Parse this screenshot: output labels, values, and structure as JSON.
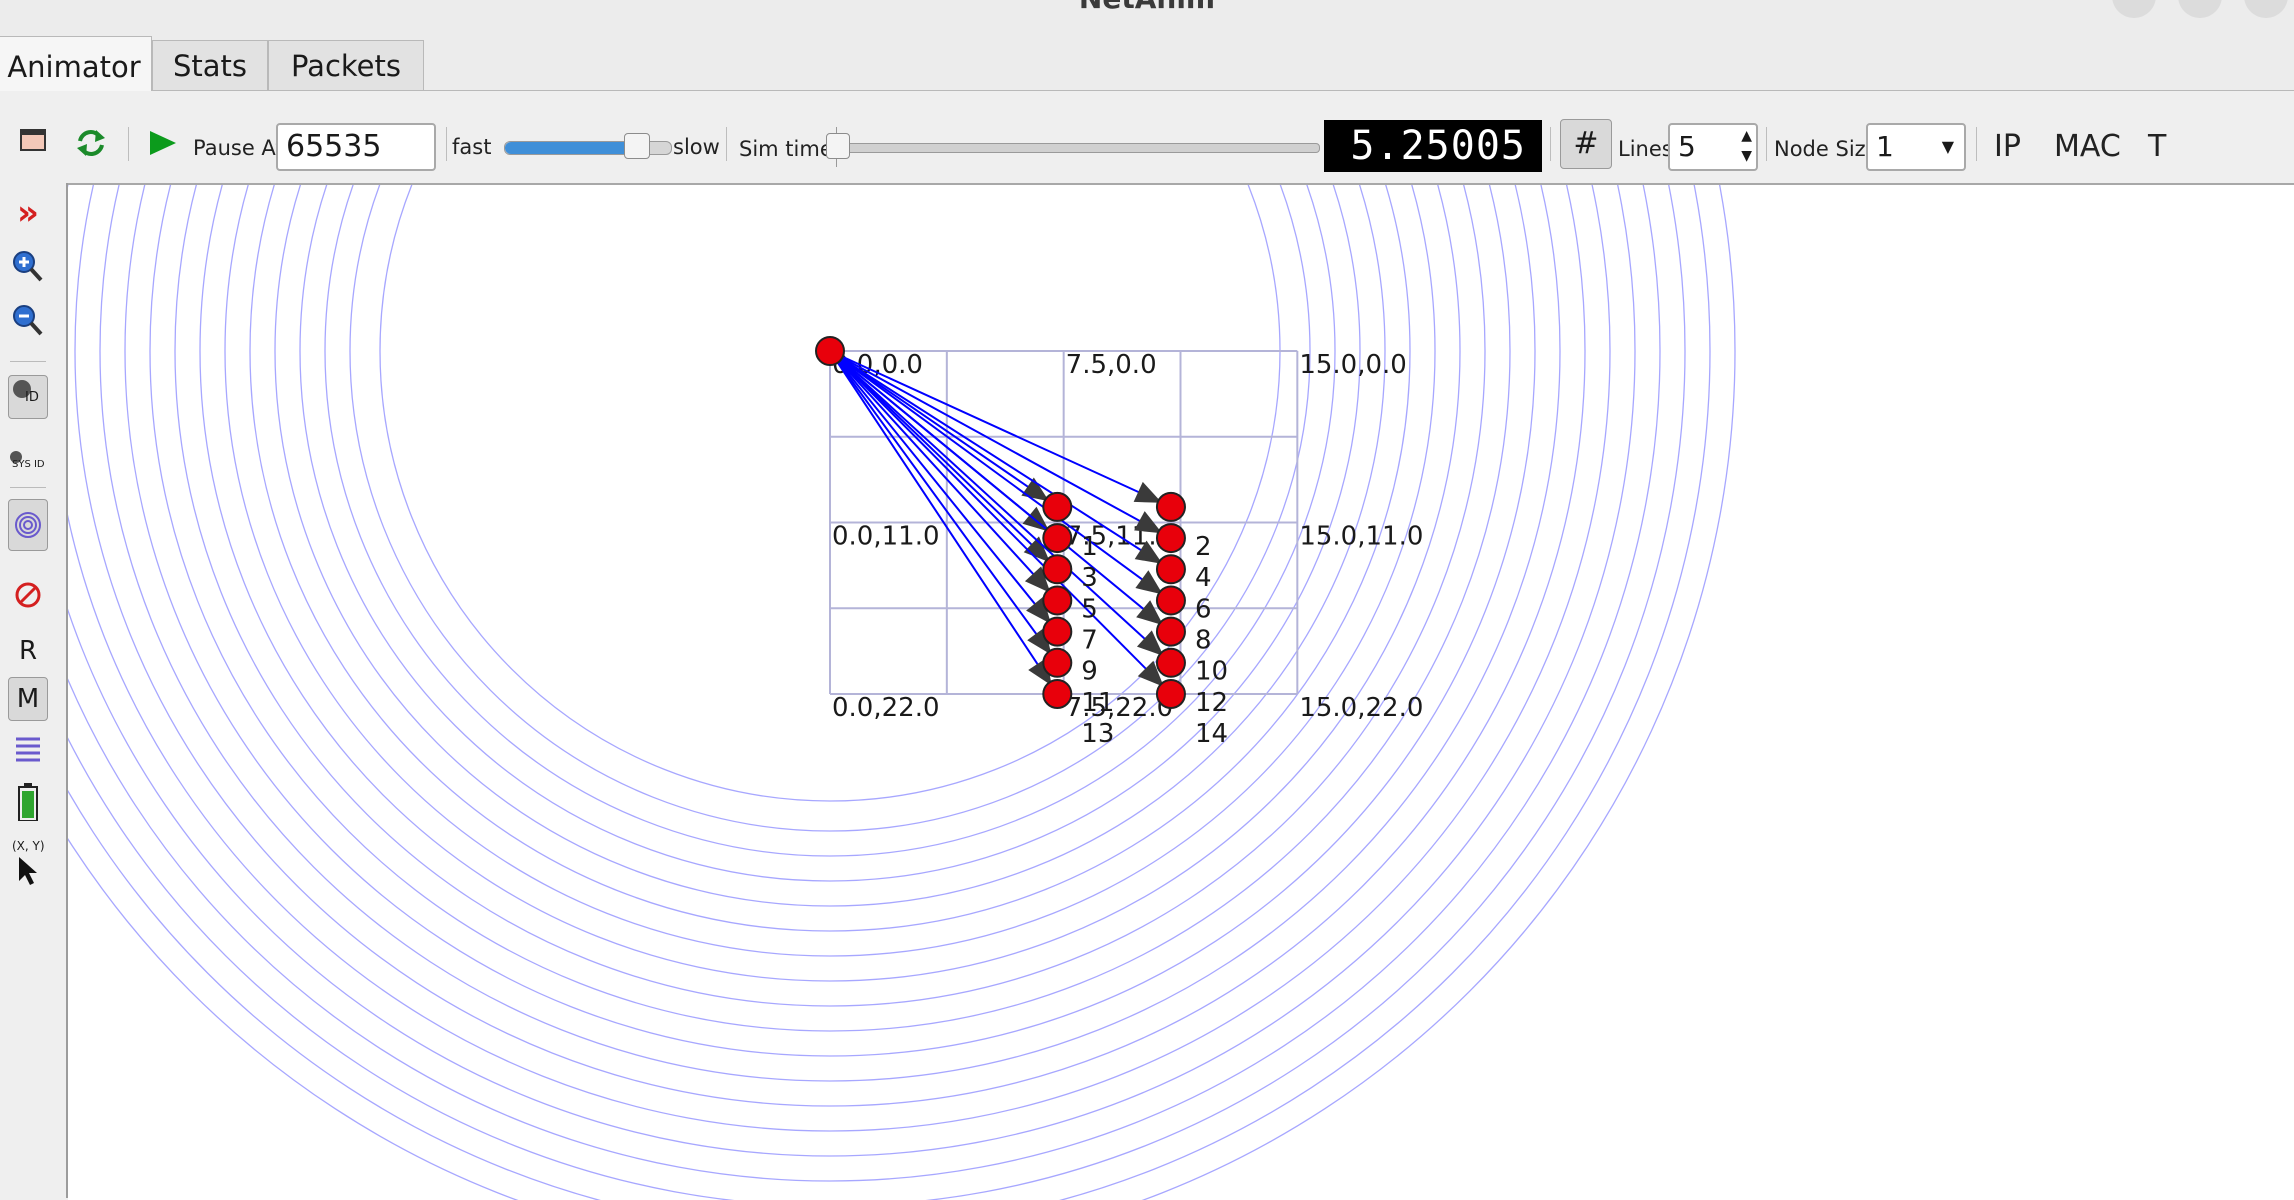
{
  "window": {
    "title": "NetAnim"
  },
  "tabs": [
    {
      "label": "Animator"
    },
    {
      "label": "Stats"
    },
    {
      "label": "Packets"
    }
  ],
  "toolbar": {
    "pause_at_label": "Pause At",
    "pause_at_value": "65535",
    "fast_label": "fast",
    "slow_label": "slow",
    "speed_level": 0.8,
    "sim_time_label": "Sim time",
    "sim_time_position": 0.0,
    "sim_time_display": "5.25005",
    "lines_label": "Lines",
    "lines_value": "5",
    "node_size_label": "Node Size",
    "node_size_value": "1",
    "ip_label": "IP",
    "mac_label": "MAC",
    "t_label": "T"
  },
  "left_tools": {
    "id_label": "ID",
    "sys_id_label": "SYS ID",
    "r_label": "R",
    "m_label": "M",
    "xy_label": "(X, Y)"
  },
  "canvas": {
    "grid_labels": [
      {
        "text": "0.0,0.0",
        "gx": 0,
        "gy": 0
      },
      {
        "text": "7.5,0.0",
        "gx": 7.5,
        "gy": 0
      },
      {
        "text": "15.0,0.0",
        "gx": 15,
        "gy": 0
      },
      {
        "text": "0.0,11.0",
        "gx": 0,
        "gy": 11
      },
      {
        "text": "7.5,11.0",
        "gx": 7.5,
        "gy": 11
      },
      {
        "text": "15.0,11.0",
        "gx": 15,
        "gy": 11
      },
      {
        "text": "0.0,22.0",
        "gx": 0,
        "gy": 22
      },
      {
        "text": "7.5,22.0",
        "gx": 7.5,
        "gy": 22
      },
      {
        "text": "15.0,22.0",
        "gx": 15,
        "gy": 22
      }
    ],
    "source_node": {
      "id": "0",
      "x": 0,
      "y": 0
    },
    "nodes": [
      {
        "id": "1",
        "x": 10.0,
        "y": 10.0
      },
      {
        "id": "2",
        "x": 15.0,
        "y": 10.0
      },
      {
        "id": "3",
        "x": 10.0,
        "y": 12.0
      },
      {
        "id": "4",
        "x": 15.0,
        "y": 12.0
      },
      {
        "id": "5",
        "x": 10.0,
        "y": 14.0
      },
      {
        "id": "6",
        "x": 15.0,
        "y": 14.0
      },
      {
        "id": "7",
        "x": 10.0,
        "y": 16.0
      },
      {
        "id": "8",
        "x": 15.0,
        "y": 16.0
      },
      {
        "id": "9",
        "x": 10.0,
        "y": 18.0
      },
      {
        "id": "10",
        "x": 15.0,
        "y": 18.0
      },
      {
        "id": "11",
        "x": 10.0,
        "y": 20.0
      },
      {
        "id": "12",
        "x": 15.0,
        "y": 20.0
      },
      {
        "id": "13",
        "x": 10.0,
        "y": 22.0
      },
      {
        "id": "14",
        "x": 15.0,
        "y": 22.0
      }
    ],
    "colors": {
      "node": "#e8000b",
      "packet_line": "#0000ff",
      "ring": "#8a8aff",
      "grid": "#b4b4d8"
    }
  }
}
